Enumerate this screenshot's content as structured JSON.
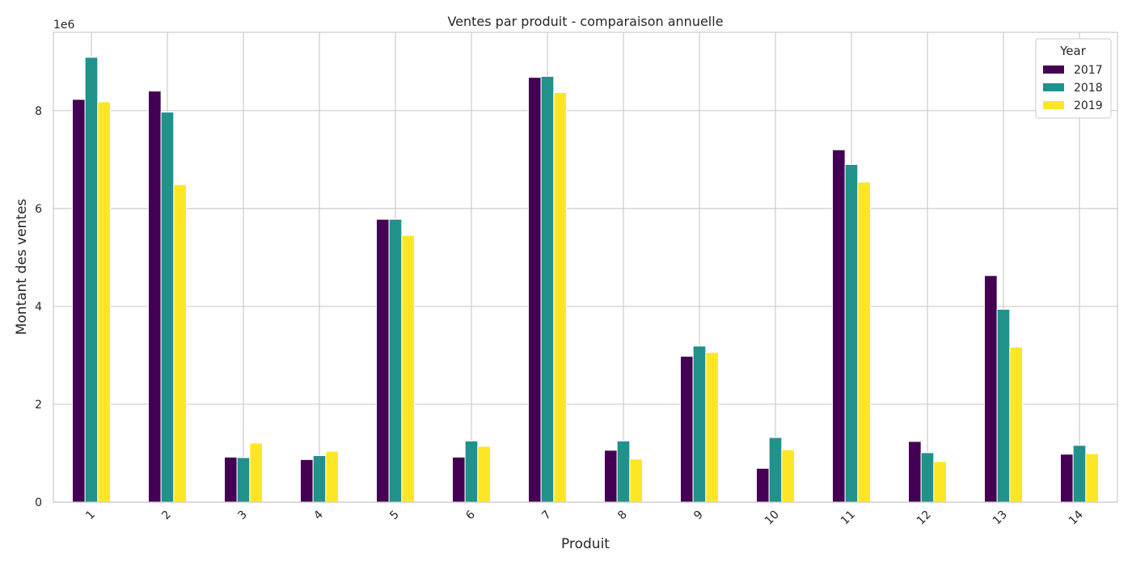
{
  "chart_data": {
    "type": "bar",
    "title": "Ventes par produit - comparaison annuelle",
    "xlabel": "Produit",
    "ylabel": "Montant des ventes",
    "y_multiplier_label": "1e6",
    "categories": [
      "1",
      "2",
      "3",
      "4",
      "5",
      "6",
      "7",
      "8",
      "9",
      "10",
      "11",
      "12",
      "13",
      "14"
    ],
    "series": [
      {
        "name": "2017",
        "color": "#440154",
        "values": [
          8230000,
          8400000,
          920000,
          870000,
          5780000,
          920000,
          8680000,
          1060000,
          2980000,
          690000,
          7200000,
          1240000,
          4630000,
          980000
        ]
      },
      {
        "name": "2018",
        "color": "#21918c",
        "values": [
          9090000,
          7970000,
          910000,
          950000,
          5780000,
          1250000,
          8700000,
          1250000,
          3190000,
          1320000,
          6900000,
          1010000,
          3940000,
          1160000
        ]
      },
      {
        "name": "2019",
        "color": "#fde725",
        "values": [
          8180000,
          6490000,
          1210000,
          1040000,
          5450000,
          1140000,
          8370000,
          880000,
          3060000,
          1070000,
          6540000,
          830000,
          3170000,
          990000
        ]
      }
    ],
    "ylim": [
      0,
      9600000
    ],
    "yticks": [
      0,
      2000000,
      4000000,
      6000000,
      8000000
    ],
    "ytick_labels": [
      "0",
      "2",
      "4",
      "6",
      "8"
    ],
    "grid": true,
    "legend": {
      "title": "Year",
      "position": "top-right"
    }
  }
}
